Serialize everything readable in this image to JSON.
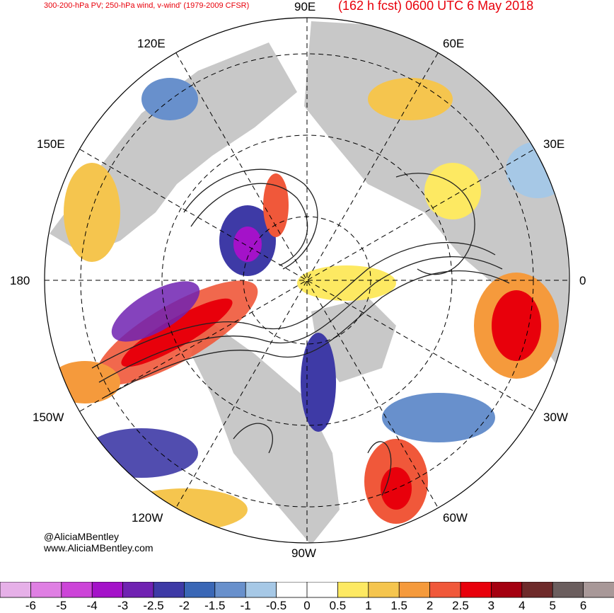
{
  "header": {
    "title_left": "300-200-hPa PV; 250-hPa wind, v-wind' (1979-2009 CFSR)",
    "title_right": "(162 h fcst) 0600 UTC 6 May 2018"
  },
  "map": {
    "projection": "north-polar-stereographic",
    "longitude_labels": [
      "90E",
      "60E",
      "30E",
      "0",
      "30W",
      "60W",
      "90W",
      "120W",
      "150W",
      "180",
      "150E",
      "120E"
    ],
    "land_color": "#c8c8c8",
    "ocean_color": "#ffffff"
  },
  "credits": {
    "twitter": "@AliciaMBentley",
    "website": "www.AliciaMBentley.com"
  },
  "colorbar": {
    "ticks": [
      "-6",
      "-5",
      "-4",
      "-3",
      "-2.5",
      "-2",
      "-1.5",
      "-1",
      "-0.5",
      "0",
      "0.5",
      "1",
      "1.5",
      "2",
      "2.5",
      "3",
      "4",
      "5",
      "6"
    ],
    "colors": [
      "#e6b0e8",
      "#df7fe3",
      "#cc44d8",
      "#a412c9",
      "#7022b2",
      "#3e3aa6",
      "#3a67b6",
      "#6890cc",
      "#a6c8e6",
      "#ffffff",
      "#ffffff",
      "#fde962",
      "#f5c54e",
      "#f59a3c",
      "#f0583a",
      "#e8000b",
      "#a40010",
      "#6e2a2a",
      "#6b5e5e",
      "#a89898"
    ]
  }
}
